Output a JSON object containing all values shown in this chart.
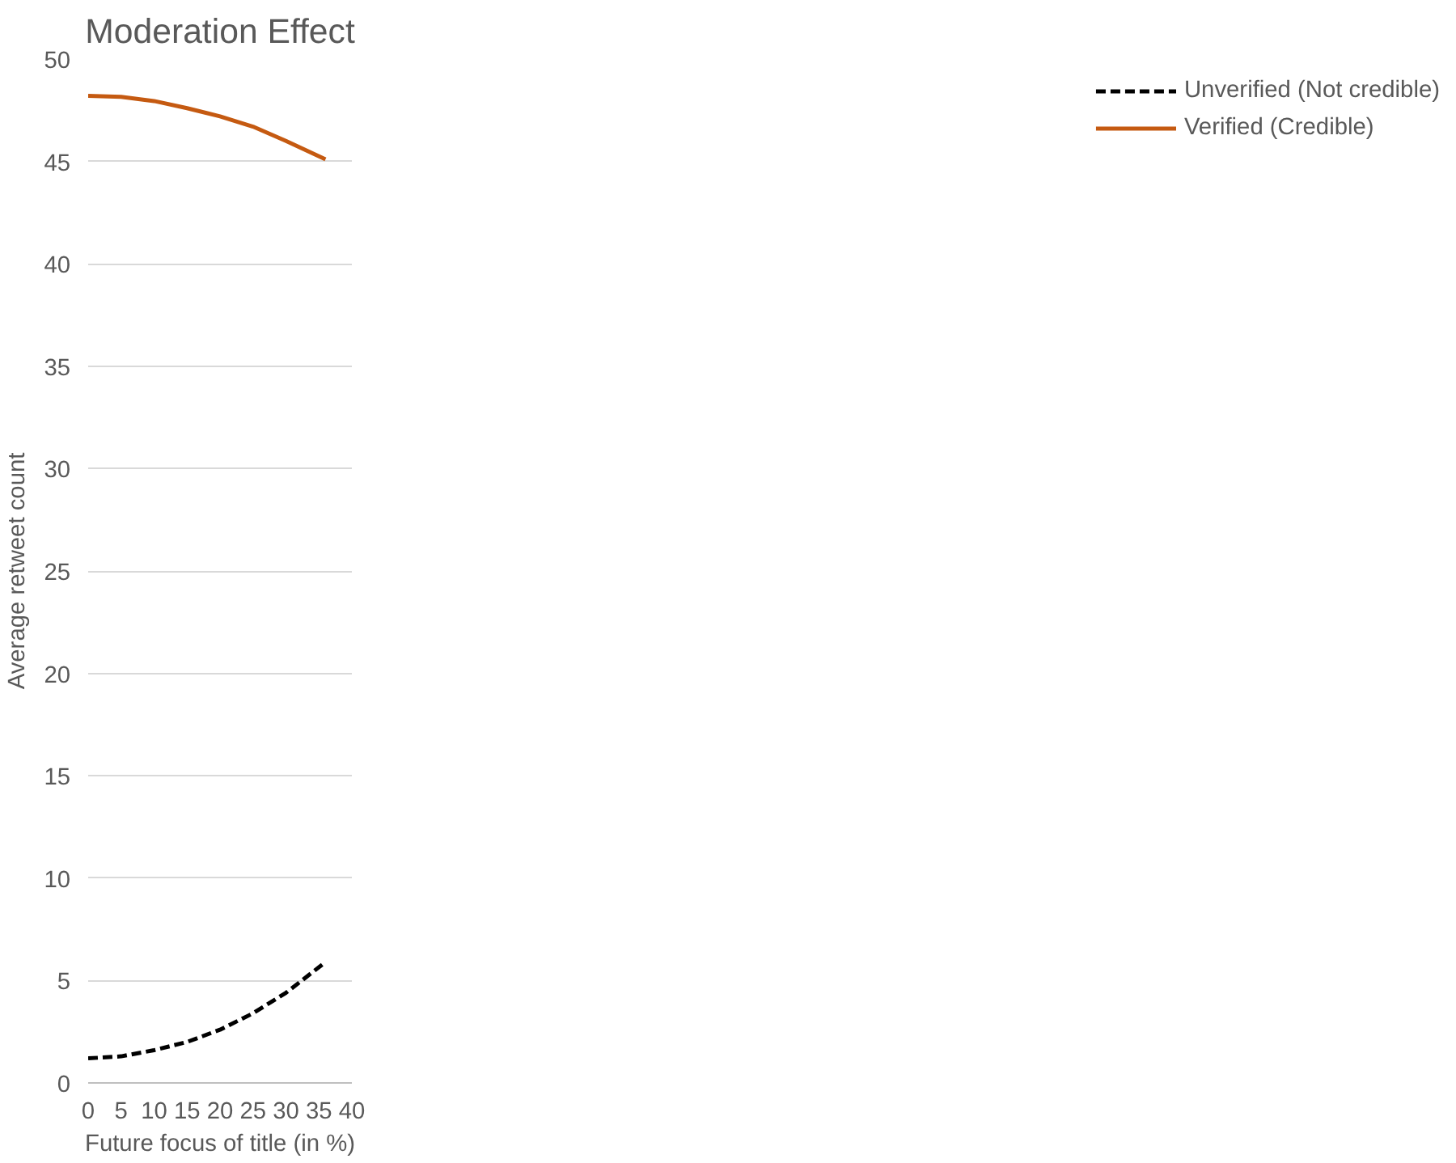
{
  "chart_data": {
    "type": "line",
    "title": "Moderation Effect",
    "xlabel": "Future focus of title (in %)",
    "ylabel": "Average retweet count",
    "x": [
      0,
      5,
      10,
      15,
      20,
      25,
      30,
      36
    ],
    "series": [
      {
        "name": "Unverified (Not credible)",
        "color": "#000000",
        "line_style": "dashed",
        "values": [
          1.2,
          1.3,
          1.6,
          2.0,
          2.6,
          3.4,
          4.4,
          5.9
        ]
      },
      {
        "name": "Verified (Credible)",
        "color": "#c55a11",
        "line_style": "solid",
        "values": [
          48.2,
          48.15,
          47.95,
          47.6,
          47.2,
          46.7,
          46.0,
          45.1
        ]
      }
    ],
    "xlim": [
      0,
      40
    ],
    "xticks": [
      0,
      5,
      10,
      15,
      20,
      25,
      30,
      35,
      40
    ],
    "ylim": [
      0,
      50
    ],
    "yticks": [
      0,
      5,
      10,
      15,
      20,
      25,
      30,
      35,
      40,
      45,
      50
    ],
    "grid": "y",
    "legend": "right",
    "marker": "none"
  }
}
